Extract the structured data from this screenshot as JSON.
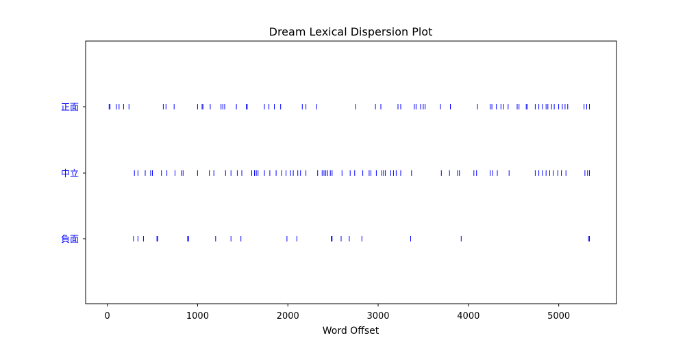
{
  "chart_data": {
    "type": "scatter",
    "title": "Dream Lexical Dispersion Plot",
    "xlabel": "Word Offset",
    "ylabel": "",
    "xlim": [
      -240,
      5640
    ],
    "xticks": [
      0,
      1000,
      2000,
      3000,
      4000,
      5000
    ],
    "xtick_labels": [
      "0",
      "1000",
      "2000",
      "3000",
      "4000",
      "5000"
    ],
    "categories": [
      "正面",
      "中立",
      "負面"
    ],
    "grid": false,
    "marker": "|",
    "color": "#0000ff",
    "series": [
      {
        "name": "正面",
        "x": [
          20,
          30,
          100,
          130,
          180,
          240,
          620,
          650,
          740,
          1000,
          1050,
          1060,
          1140,
          1260,
          1280,
          1300,
          1430,
          1540,
          1550,
          1740,
          1790,
          1850,
          1920,
          2160,
          2200,
          2320,
          2750,
          2970,
          3030,
          3220,
          3250,
          3400,
          3420,
          3470,
          3500,
          3520,
          3690,
          3800,
          4100,
          4240,
          4260,
          4310,
          4360,
          4390,
          4440,
          4540,
          4560,
          4640,
          4650,
          4740,
          4780,
          4820,
          4860,
          4880,
          4920,
          4950,
          5000,
          5040,
          5070,
          5100,
          5280,
          5310,
          5340
        ]
      },
      {
        "name": "中立",
        "x": [
          300,
          340,
          420,
          480,
          500,
          600,
          660,
          750,
          820,
          840,
          1000,
          1130,
          1180,
          1310,
          1370,
          1440,
          1490,
          1600,
          1630,
          1650,
          1670,
          1740,
          1800,
          1870,
          1930,
          1980,
          2030,
          2060,
          2110,
          2140,
          2200,
          2330,
          2380,
          2400,
          2420,
          2440,
          2470,
          2490,
          2600,
          2690,
          2740,
          2830,
          2900,
          2920,
          2980,
          3040,
          3060,
          3080,
          3140,
          3170,
          3200,
          3250,
          3370,
          3700,
          3790,
          3880,
          3900,
          4060,
          4090,
          4240,
          4270,
          4320,
          4450,
          4740,
          4780,
          4820,
          4860,
          4900,
          4940,
          4990,
          5030,
          5080,
          5290,
          5320,
          5340
        ]
      },
      {
        "name": "負面",
        "x": [
          290,
          340,
          400,
          550,
          560,
          890,
          900,
          1200,
          1370,
          1480,
          1990,
          2100,
          2480,
          2490,
          2590,
          2680,
          2820,
          3360,
          3920,
          5330,
          5340
        ]
      }
    ]
  }
}
